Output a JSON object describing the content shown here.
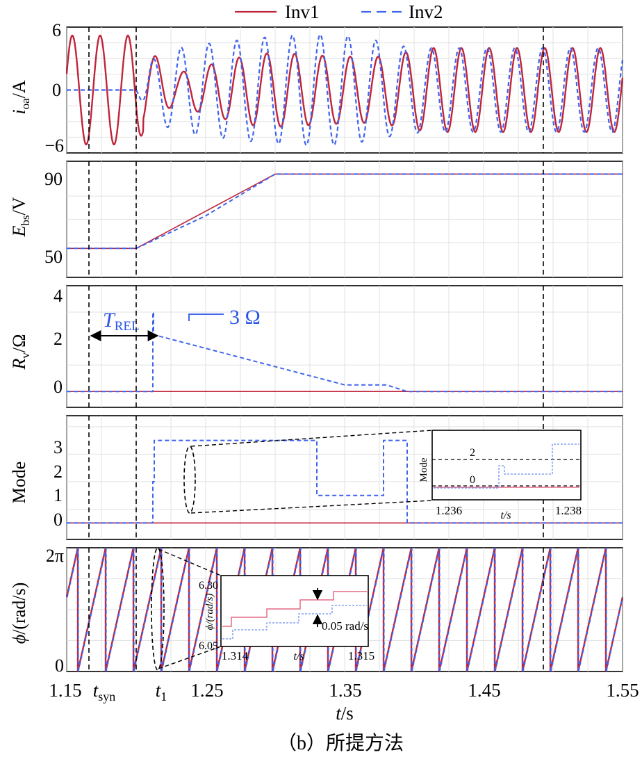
{
  "figure": {
    "caption": "（b）所提方法",
    "xlabel_main": "t",
    "xlabel_unit": "/s",
    "x_ticks": [
      "1.15",
      "1.25",
      "1.35",
      "1.45",
      "1.55"
    ],
    "marker_tsyn_main": "t",
    "marker_tsyn_sub": "syn",
    "marker_t1_main": "t",
    "marker_t1_sub": "1",
    "legend": {
      "inv1": "Inv1",
      "inv2": "Inv2"
    }
  },
  "colors": {
    "inv1": "#c0243a",
    "inv2": "#3f64ee",
    "annotation": "#2a55e8"
  },
  "panels": {
    "current": {
      "ylabel_main": "i",
      "ylabel_sub": "oa",
      "ylabel_unit": "/A",
      "y_ticks": [
        "6",
        "0",
        "−6"
      ]
    },
    "voltage": {
      "ylabel_main": "E",
      "ylabel_sub": "bs",
      "ylabel_unit": "/V",
      "y_ticks": [
        "90",
        "50"
      ]
    },
    "resistance": {
      "ylabel_main": "R",
      "ylabel_sub": "v",
      "ylabel_unit": "/Ω",
      "y_ticks": [
        "4",
        "2",
        "0"
      ],
      "annotation_value": "3 Ω",
      "trel_main": "T",
      "trel_sub": "REL"
    },
    "mode": {
      "ylabel": "Mode",
      "y_ticks": [
        "3",
        "2",
        "1",
        "0"
      ],
      "inset": {
        "ylabel": "Mode",
        "xlabel": "t/s",
        "x_ticks": [
          "1.236",
          "1.238"
        ],
        "labels": [
          "2",
          "0"
        ]
      }
    },
    "phase": {
      "ylabel_main": "ϕ",
      "ylabel_unit": "/(rad/s)",
      "y_ticks": [
        "2π",
        "0"
      ],
      "inset": {
        "ylabel": "ϕ/(rad/s)",
        "xlabel": "t/s",
        "x_ticks": [
          "1.314",
          "1.315"
        ],
        "y_ticks": [
          "6.30",
          "6.05"
        ],
        "delta_label": "0.05 rad/s"
      }
    }
  },
  "chart_data": [
    {
      "type": "line",
      "panel": "current",
      "xlabel": "t/s",
      "ylabel": "i_oa/A",
      "xlim": [
        1.15,
        1.55
      ],
      "ylim": [
        -6,
        6
      ],
      "frequency_hz": 50,
      "series": [
        {
          "name": "Inv1",
          "t": [
            1.15,
            1.2,
            1.21,
            1.23,
            1.25,
            1.27,
            1.29,
            1.31,
            1.33,
            1.35,
            1.37,
            1.39,
            1.41,
            1.49,
            1.55
          ],
          "amplitude": [
            5.2,
            5.2,
            3.0,
            1.5,
            2.3,
            3.0,
            3.5,
            3.5,
            3.3,
            3.2,
            3.1,
            3.5,
            4.0,
            4.0,
            4.0
          ]
        },
        {
          "name": "Inv2",
          "t": [
            1.15,
            1.2,
            1.21,
            1.23,
            1.25,
            1.27,
            1.29,
            1.31,
            1.33,
            1.35,
            1.37,
            1.39,
            1.41,
            1.49,
            1.55
          ],
          "amplitude": [
            0,
            0,
            2.8,
            4.0,
            4.4,
            4.7,
            5.0,
            5.2,
            5.3,
            5.2,
            4.8,
            4.2,
            4.0,
            4.0,
            4.0
          ]
        }
      ]
    },
    {
      "type": "line",
      "panel": "voltage",
      "xlabel": "t/s",
      "ylabel": "E_bs/V",
      "xlim": [
        1.15,
        1.55
      ],
      "ylim": [
        45,
        95
      ],
      "series": [
        {
          "name": "Inv1",
          "x": [
            1.15,
            1.2,
            1.3,
            1.55
          ],
          "y": [
            57.5,
            57.5,
            89.5,
            89.5
          ]
        },
        {
          "name": "Inv2",
          "x": [
            1.15,
            1.2,
            1.25,
            1.3,
            1.55
          ],
          "y": [
            57.5,
            57.5,
            71.5,
            89.5,
            89.5
          ]
        }
      ]
    },
    {
      "type": "line",
      "panel": "resistance",
      "xlabel": "t/s",
      "ylabel": "R_v/Ω",
      "xlim": [
        1.15,
        1.55
      ],
      "ylim": [
        -0.6,
        4
      ],
      "series": [
        {
          "name": "Inv1",
          "x": [
            1.15,
            1.55
          ],
          "y": [
            0,
            0
          ]
        },
        {
          "name": "Inv2",
          "x": [
            1.15,
            1.212,
            1.212,
            1.2125,
            1.2125,
            1.35,
            1.38,
            1.395,
            1.55
          ],
          "y": [
            0,
            0,
            3.0,
            3.0,
            2.15,
            0.25,
            0.25,
            0,
            0
          ]
        }
      ]
    },
    {
      "type": "line",
      "panel": "mode",
      "xlabel": "t/s",
      "ylabel": "Mode",
      "xlim": [
        1.15,
        1.55
      ],
      "ylim": [
        -0.6,
        3.9
      ],
      "series": [
        {
          "name": "Inv1",
          "x": [
            1.15,
            1.55
          ],
          "y": [
            0,
            0
          ]
        },
        {
          "name": "Inv2",
          "x": [
            1.15,
            1.212,
            1.212,
            1.213,
            1.213,
            1.33,
            1.33,
            1.378,
            1.378,
            1.395,
            1.395,
            1.55
          ],
          "y": [
            0,
            0,
            1.5,
            1.5,
            3,
            3,
            1,
            1,
            3,
            3,
            0,
            0
          ]
        }
      ]
    },
    {
      "type": "line",
      "panel": "phase",
      "xlabel": "t/s",
      "ylabel": "ϕ/(rad/s)",
      "xlim": [
        1.15,
        1.55
      ],
      "ylim": [
        0,
        6.283
      ],
      "shape": "sawtooth 0 to 2π at 50 Hz",
      "series": [
        {
          "name": "Inv1"
        },
        {
          "name": "Inv2"
        }
      ]
    }
  ]
}
